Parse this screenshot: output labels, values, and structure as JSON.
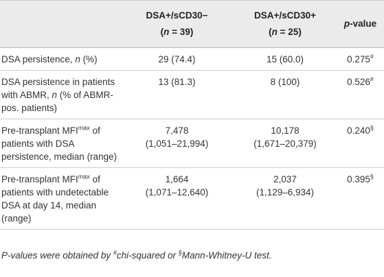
{
  "table": {
    "header": [
      [
        [
          {
            "text": "DSA+/sCD30−"
          }
        ],
        [
          {
            "text": "("
          },
          {
            "text": "n",
            "style": "italic"
          },
          {
            "text": " = 39)"
          }
        ]
      ],
      [
        [
          {
            "text": "DSA+/sCD30+"
          }
        ],
        [
          {
            "text": "("
          },
          {
            "text": "n",
            "style": "italic"
          },
          {
            "text": " = 25)"
          }
        ]
      ],
      [
        [
          {
            "text": "p",
            "style": "italic"
          },
          {
            "text": "-value"
          }
        ]
      ]
    ],
    "rows": [
      [
        [
          [
            {
              "text": "DSA persistence, "
            },
            {
              "text": "n",
              "style": "italic"
            },
            {
              "text": " (%)"
            }
          ]
        ],
        [
          [
            {
              "text": "29 (74.4)"
            }
          ]
        ],
        [
          [
            {
              "text": "15 (60.0)"
            }
          ]
        ],
        [
          [
            {
              "text": "0.275"
            },
            {
              "text": "#",
              "style": "sup"
            }
          ]
        ]
      ],
      [
        [
          [
            {
              "text": "DSA persistence in patients with ABMR, "
            },
            {
              "text": "n",
              "style": "italic"
            },
            {
              "text": " (% of ABMR-pos. patients)"
            }
          ]
        ],
        [
          [
            {
              "text": "13 (81.3)"
            }
          ]
        ],
        [
          [
            {
              "text": "8 (100)"
            }
          ]
        ],
        [
          [
            {
              "text": "0.526"
            },
            {
              "text": "#",
              "style": "sup"
            }
          ]
        ]
      ],
      [
        [
          [
            {
              "text": "Pre-transplant MFI"
            },
            {
              "text": "max",
              "style": "sup"
            },
            {
              "text": " of patients with DSA persistence, median (range)"
            }
          ]
        ],
        [
          [
            {
              "text": "7,478"
            }
          ],
          [
            {
              "text": "(1,051–21,994)"
            }
          ]
        ],
        [
          [
            {
              "text": "10,178"
            }
          ],
          [
            {
              "text": "(1,671–20,379)"
            }
          ]
        ],
        [
          [
            {
              "text": "0.240"
            },
            {
              "text": "§",
              "style": "sup"
            }
          ]
        ]
      ],
      [
        [
          [
            {
              "text": "Pre-transplant MFI"
            },
            {
              "text": "max",
              "style": "sup"
            },
            {
              "text": " of patients with undetectable DSA at day 14, median (range)"
            }
          ]
        ],
        [
          [
            {
              "text": "1,664"
            }
          ],
          [
            {
              "text": "(1,071–12,640)"
            }
          ]
        ],
        [
          [
            {
              "text": "2,037"
            }
          ],
          [
            {
              "text": "(1,129–6,934)"
            }
          ]
        ],
        [
          [
            {
              "text": "0.395"
            },
            {
              "text": "§",
              "style": "sup"
            }
          ]
        ]
      ]
    ]
  },
  "footnote": [
    {
      "text": "P-values were obtained by "
    },
    {
      "text": "#",
      "style": "sup"
    },
    {
      "text": "chi-squared or "
    },
    {
      "text": "§",
      "style": "sup"
    },
    {
      "text": "Mann-Whitney-U test."
    }
  ]
}
